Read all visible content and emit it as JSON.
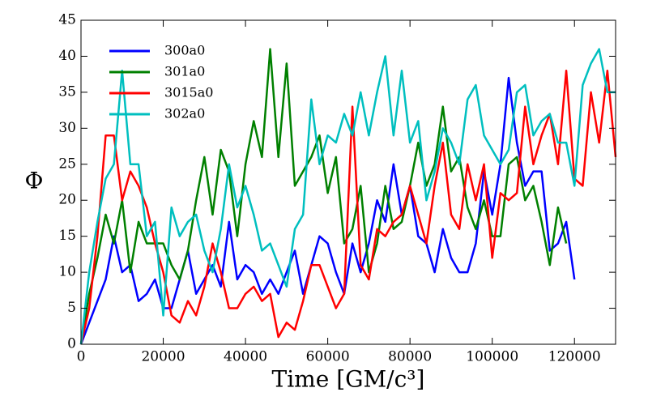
{
  "chart_data": {
    "type": "line",
    "xlabel": "Time [GM/c³]",
    "ylabel": "Φ",
    "x": [
      0,
      2000,
      4000,
      6000,
      8000,
      10000,
      12000,
      14000,
      16000,
      18000,
      20000,
      22000,
      24000,
      26000,
      28000,
      30000,
      32000,
      34000,
      36000,
      38000,
      40000,
      42000,
      44000,
      46000,
      48000,
      50000,
      52000,
      54000,
      56000,
      58000,
      60000,
      62000,
      64000,
      66000,
      68000,
      70000,
      72000,
      74000,
      76000,
      78000,
      80000,
      82000,
      84000,
      86000,
      88000,
      90000,
      92000,
      94000,
      96000,
      98000,
      100000,
      102000,
      104000,
      106000,
      108000,
      110000,
      112000,
      114000,
      116000,
      118000,
      120000,
      122000,
      124000,
      126000,
      128000,
      130000
    ],
    "series": [
      {
        "name": "300a0",
        "color": "#0000ff",
        "values": [
          0,
          3,
          6,
          9,
          15,
          10,
          11,
          6,
          7,
          9,
          5,
          5,
          9,
          13,
          7,
          9,
          11,
          8,
          17,
          9,
          11,
          10,
          7,
          9,
          7,
          10,
          13,
          7,
          11,
          15,
          14,
          10,
          7,
          14,
          10,
          14,
          20,
          17,
          25,
          18,
          22,
          15,
          14,
          10,
          16,
          12,
          10,
          10,
          14,
          24,
          18,
          25,
          37,
          28,
          22,
          24,
          24,
          13,
          14,
          17,
          9,
          null,
          null,
          null,
          null,
          null
        ]
      },
      {
        "name": "301a0",
        "color": "#008000",
        "values": [
          0,
          7,
          12,
          18,
          14,
          20,
          10,
          17,
          14,
          14,
          14,
          11,
          9,
          13,
          20,
          26,
          18,
          27,
          24,
          15,
          25,
          31,
          26,
          41,
          26,
          39,
          22,
          24,
          26,
          29,
          21,
          26,
          14,
          16,
          22,
          10,
          14,
          22,
          16,
          17,
          22,
          28,
          22,
          25,
          33,
          24,
          26,
          19,
          16,
          20,
          15,
          15,
          25,
          26,
          20,
          22,
          17,
          11,
          19,
          14,
          null,
          null,
          null,
          null,
          null,
          null
        ]
      },
      {
        "name": "3015a0",
        "color": "#ff0000",
        "values": [
          0,
          5,
          15,
          29,
          29,
          20,
          24,
          22,
          19,
          14,
          10,
          4,
          3,
          6,
          4,
          8,
          14,
          10,
          5,
          5,
          7,
          8,
          6,
          7,
          1,
          3,
          2,
          6,
          11,
          11,
          8,
          5,
          7,
          33,
          11,
          9,
          16,
          15,
          17,
          18,
          22,
          18,
          14,
          22,
          28,
          18,
          16,
          25,
          20,
          25,
          12,
          21,
          20,
          21,
          33,
          25,
          29,
          32,
          25,
          38,
          23,
          22,
          35,
          28,
          38,
          26
        ]
      },
      {
        "name": "302a0",
        "color": "#00bfbf",
        "values": [
          0,
          10,
          17,
          23,
          25,
          38,
          25,
          25,
          15,
          17,
          4,
          19,
          15,
          17,
          18,
          13,
          10,
          16,
          25,
          19,
          22,
          18,
          13,
          14,
          11,
          8,
          16,
          18,
          34,
          25,
          29,
          28,
          32,
          29,
          35,
          29,
          35,
          40,
          29,
          38,
          28,
          31,
          20,
          24,
          30,
          28,
          25,
          34,
          36,
          29,
          27,
          25,
          27,
          35,
          36,
          29,
          31,
          32,
          28,
          28,
          22,
          36,
          39,
          41,
          35,
          35
        ]
      }
    ],
    "xlim": [
      0,
      130000
    ],
    "ylim": [
      0,
      45
    ],
    "xticks": [
      0,
      20000,
      40000,
      60000,
      80000,
      100000,
      120000
    ],
    "yticks": [
      0,
      5,
      10,
      15,
      20,
      25,
      30,
      35,
      40,
      45
    ],
    "legend": "upper left"
  }
}
